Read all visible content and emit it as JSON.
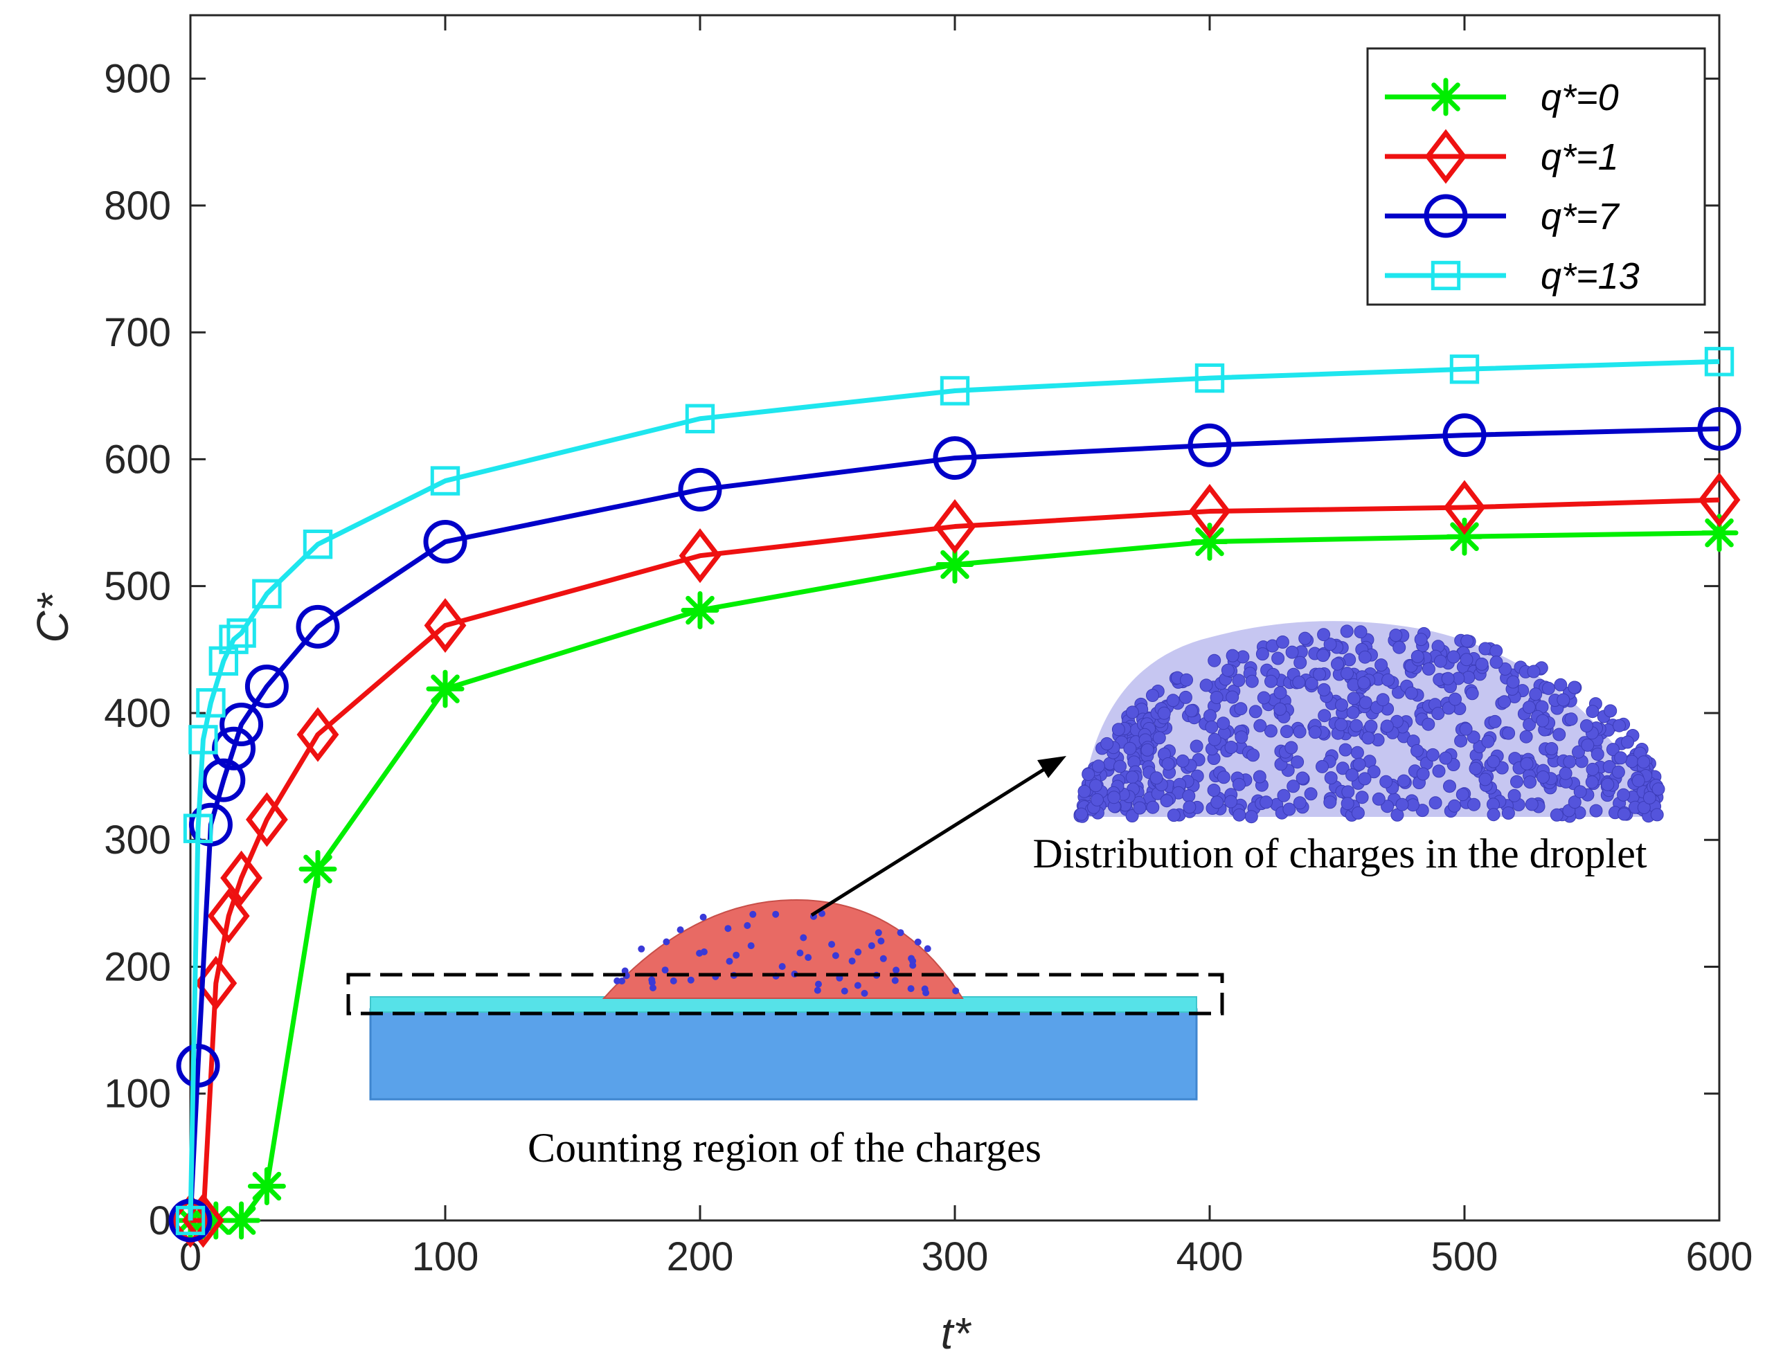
{
  "chart_data": {
    "type": "line",
    "title": "",
    "xlabel": "t*",
    "ylabel": "C*",
    "xlim": [
      0,
      600
    ],
    "ylim": [
      0,
      950
    ],
    "xticks": [
      0,
      100,
      200,
      300,
      400,
      500,
      600
    ],
    "yticks": [
      0,
      100,
      200,
      300,
      400,
      500,
      600,
      700,
      800,
      900
    ],
    "grid": false,
    "legend_position": "top-right",
    "series": [
      {
        "name": "q*=0",
        "color": "#00ee00",
        "marker": "asterisk",
        "x": [
          0,
          5,
          10,
          20,
          30,
          50,
          100,
          200,
          300,
          400,
          500,
          600
        ],
        "y": [
          0,
          0,
          0,
          0,
          27,
          277,
          419,
          481,
          517,
          535,
          539,
          542
        ]
      },
      {
        "name": "q*=1",
        "color": "#ee1111",
        "marker": "diamond",
        "x": [
          0,
          5,
          10,
          15,
          20,
          30,
          50,
          100,
          200,
          300,
          400,
          500,
          600
        ],
        "y": [
          0,
          0,
          187,
          240,
          270,
          316,
          383,
          469,
          524,
          547,
          559,
          562,
          568
        ]
      },
      {
        "name": "q*=7",
        "color": "#0000c8",
        "marker": "circle",
        "x": [
          0,
          3,
          8,
          13,
          17,
          20,
          30,
          50,
          100,
          200,
          300,
          400,
          500,
          600
        ],
        "y": [
          0,
          122,
          312,
          347,
          372,
          391,
          421,
          468,
          535,
          576,
          601,
          611,
          619,
          624
        ]
      },
      {
        "name": "q*=13",
        "color": "#1ee6ee",
        "marker": "square",
        "x": [
          0,
          3,
          5,
          8,
          13,
          17,
          20,
          30,
          50,
          100,
          200,
          300,
          400,
          500,
          600
        ],
        "y": [
          0,
          309,
          379,
          408,
          441,
          458,
          463,
          494,
          533,
          583,
          632,
          654,
          664,
          671,
          677
        ]
      }
    ],
    "annotations": [
      "Distribution of charges in the droplet",
      "Counting region of the charges"
    ]
  }
}
